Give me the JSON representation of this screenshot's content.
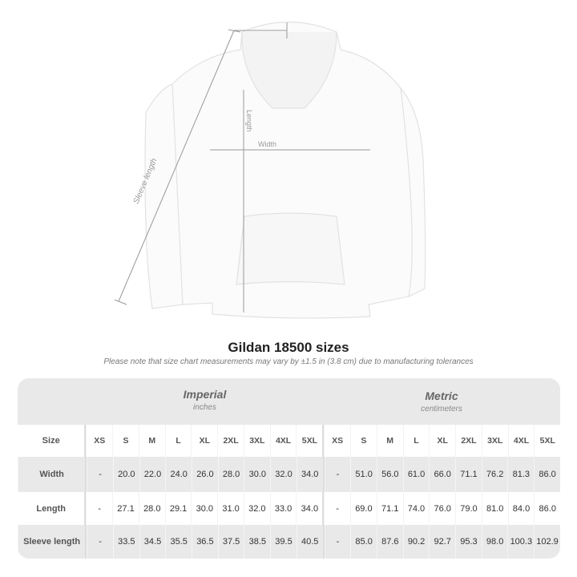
{
  "diagram": {
    "sleeve_label": "Sleeve length",
    "length_label": "Length",
    "width_label": "Width"
  },
  "title": "Gildan 18500 sizes",
  "note": "Please note that size chart measurements may vary by ±1.5 in (3.8 cm) due to manufacturing tolerances",
  "table": {
    "imperial": {
      "name": "Imperial",
      "unit": "inches"
    },
    "metric": {
      "name": "Metric",
      "unit": "centimeters"
    },
    "size_label": "Size",
    "sizes": [
      "XS",
      "S",
      "M",
      "L",
      "XL",
      "2XL",
      "3XL",
      "4XL",
      "5XL"
    ],
    "rows": [
      {
        "label": "Width",
        "imperial": [
          "-",
          "20.0",
          "22.0",
          "24.0",
          "26.0",
          "28.0",
          "30.0",
          "32.0",
          "34.0"
        ],
        "metric": [
          "-",
          "51.0",
          "56.0",
          "61.0",
          "66.0",
          "71.1",
          "76.2",
          "81.3",
          "86.0"
        ]
      },
      {
        "label": "Length",
        "imperial": [
          "-",
          "27.1",
          "28.0",
          "29.1",
          "30.0",
          "31.0",
          "32.0",
          "33.0",
          "34.0"
        ],
        "metric": [
          "-",
          "69.0",
          "71.1",
          "74.0",
          "76.0",
          "79.0",
          "81.0",
          "84.0",
          "86.0"
        ]
      },
      {
        "label": "Sleeve length",
        "imperial": [
          "-",
          "33.5",
          "34.5",
          "35.5",
          "36.5",
          "37.5",
          "38.5",
          "39.5",
          "40.5"
        ],
        "metric": [
          "-",
          "85.0",
          "87.6",
          "90.2",
          "92.7",
          "95.3",
          "98.0",
          "100.3",
          "102.9"
        ]
      }
    ]
  }
}
